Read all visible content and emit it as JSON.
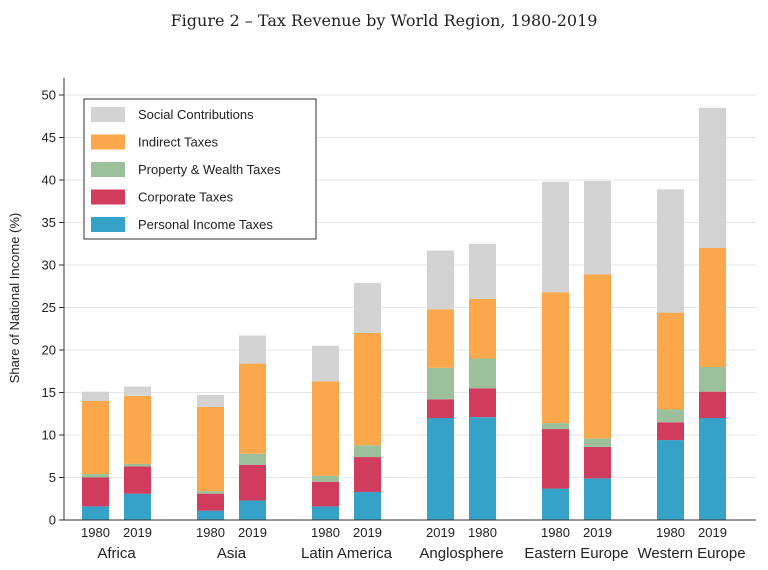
{
  "chart_data": {
    "type": "bar",
    "stacked": true,
    "title": "Figure 2 – Tax Revenue by World Region, 1980-2019",
    "xlabel": "",
    "ylabel": "Share of National Income (%)",
    "ylim": [
      0,
      52
    ],
    "yticks": [
      0,
      5,
      10,
      15,
      20,
      25,
      30,
      35,
      40,
      45,
      50
    ],
    "grid": true,
    "legend_position": "top-left",
    "legend": [
      "Social Contributions",
      "Indirect Taxes",
      "Property & Wealth Taxes",
      "Corporate Taxes",
      "Personal Income Taxes"
    ],
    "groups": [
      {
        "name": "Africa",
        "categories": [
          "1980",
          "2019"
        ]
      },
      {
        "name": "Asia",
        "categories": [
          "1980",
          "2019"
        ]
      },
      {
        "name": "Latin America",
        "categories": [
          "1980",
          "2019"
        ]
      },
      {
        "name": "Anglosphere",
        "categories": [
          "2019",
          "1980"
        ]
      },
      {
        "name": "Eastern Europe",
        "categories": [
          "1980",
          "2019"
        ]
      },
      {
        "name": "Western Europe",
        "categories": [
          "1980",
          "2019"
        ]
      }
    ],
    "categories": [
      "1980",
      "2019",
      "1980",
      "2019",
      "1980",
      "2019",
      "2019",
      "1980",
      "1980",
      "2019",
      "1980",
      "2019"
    ],
    "series": [
      {
        "name": "Personal Income Taxes",
        "color": "#36a2c8",
        "values": [
          1.6,
          3.1,
          1.1,
          2.3,
          1.6,
          3.3,
          12.0,
          12.1,
          3.7,
          4.9,
          9.4,
          12.0
        ]
      },
      {
        "name": "Corporate Taxes",
        "color": "#d13b5e",
        "values": [
          3.4,
          3.2,
          2.0,
          4.2,
          2.9,
          4.1,
          2.2,
          3.4,
          7.0,
          3.7,
          2.1,
          3.1
        ]
      },
      {
        "name": "Property & Wealth Taxes",
        "color": "#9cc19a",
        "values": [
          0.4,
          0.3,
          0.3,
          1.3,
          0.7,
          1.4,
          3.7,
          3.5,
          0.7,
          1.0,
          1.5,
          2.9
        ]
      },
      {
        "name": "Indirect Taxes",
        "color": "#fba84d",
        "values": [
          8.6,
          8.0,
          9.9,
          10.6,
          11.1,
          13.2,
          6.9,
          7.0,
          15.4,
          19.3,
          11.4,
          14.0
        ]
      },
      {
        "name": "Social Contributions",
        "color": "#d3d3d3",
        "values": [
          1.1,
          1.1,
          1.4,
          3.3,
          4.2,
          5.9,
          6.9,
          6.5,
          13.0,
          11.0,
          14.5,
          16.5
        ]
      }
    ]
  }
}
